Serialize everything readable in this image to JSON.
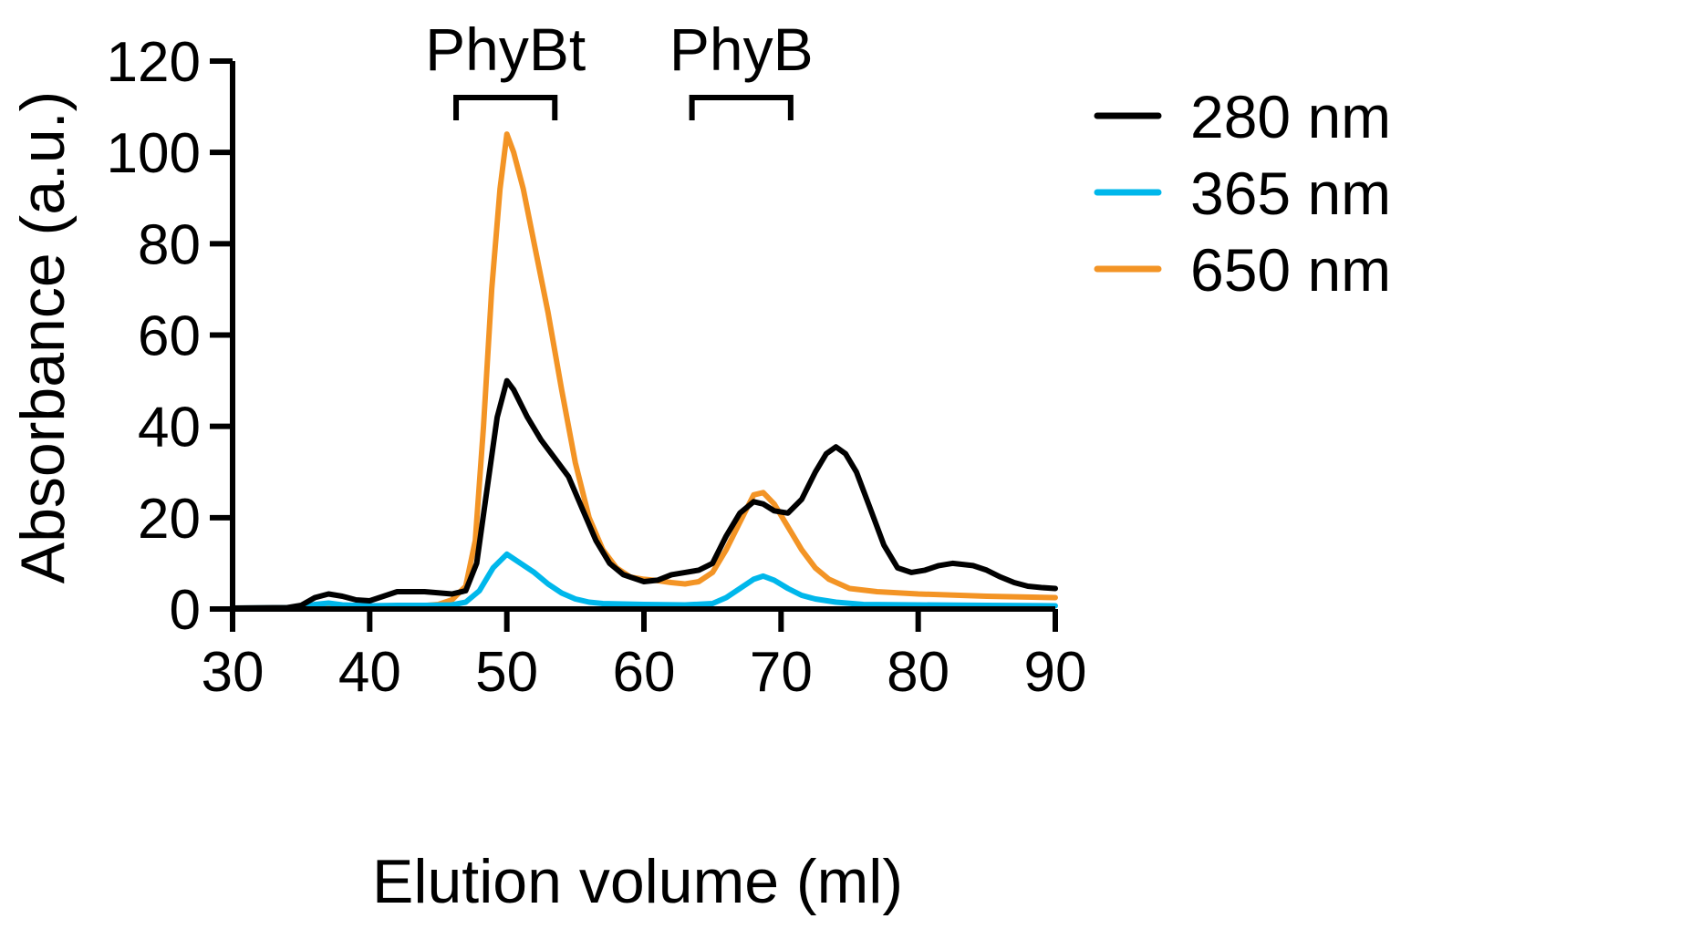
{
  "chart_data": {
    "type": "line",
    "title": "",
    "xlabel": "Elution volume (ml)",
    "ylabel": "Absorbance (a.u.)",
    "xlim": [
      30,
      90
    ],
    "ylim": [
      0,
      120
    ],
    "xticks": [
      30,
      40,
      50,
      60,
      70,
      80,
      90
    ],
    "yticks": [
      0,
      20,
      40,
      60,
      80,
      100,
      120
    ],
    "grid": false,
    "legend_position": "right",
    "series": [
      {
        "name": "280 nm",
        "color": "#000000",
        "points": [
          [
            30,
            0.2
          ],
          [
            34,
            0.3
          ],
          [
            35,
            0.8
          ],
          [
            36,
            2.5
          ],
          [
            37,
            3.3
          ],
          [
            38,
            2.8
          ],
          [
            39,
            2.0
          ],
          [
            40,
            1.8
          ],
          [
            41,
            2.8
          ],
          [
            42,
            3.8
          ],
          [
            44,
            3.8
          ],
          [
            46,
            3.3
          ],
          [
            47,
            4.0
          ],
          [
            47.8,
            10
          ],
          [
            48.5,
            25
          ],
          [
            49.3,
            42
          ],
          [
            50,
            50
          ],
          [
            50.5,
            48
          ],
          [
            51.5,
            42
          ],
          [
            52.5,
            37
          ],
          [
            53.5,
            33
          ],
          [
            54.5,
            29
          ],
          [
            55.5,
            22
          ],
          [
            56.5,
            15
          ],
          [
            57.5,
            10
          ],
          [
            58.5,
            7.5
          ],
          [
            60,
            6.0
          ],
          [
            61,
            6.3
          ],
          [
            62,
            7.5
          ],
          [
            63,
            8.0
          ],
          [
            64,
            8.5
          ],
          [
            65,
            10
          ],
          [
            66,
            16
          ],
          [
            67,
            21
          ],
          [
            68,
            23.5
          ],
          [
            68.7,
            23
          ],
          [
            69.5,
            21.5
          ],
          [
            70.5,
            21
          ],
          [
            71.5,
            24
          ],
          [
            72.5,
            30
          ],
          [
            73.3,
            34
          ],
          [
            74,
            35.5
          ],
          [
            74.7,
            34
          ],
          [
            75.5,
            30
          ],
          [
            76.5,
            22
          ],
          [
            77.5,
            14
          ],
          [
            78.5,
            9
          ],
          [
            79.5,
            8
          ],
          [
            80.5,
            8.5
          ],
          [
            81.5,
            9.5
          ],
          [
            82.5,
            10
          ],
          [
            84,
            9.5
          ],
          [
            85,
            8.5
          ],
          [
            86,
            7
          ],
          [
            87,
            5.8
          ],
          [
            88,
            5
          ],
          [
            89,
            4.7
          ],
          [
            90,
            4.5
          ]
        ]
      },
      {
        "name": "365 nm",
        "color": "#00B7EB",
        "points": [
          [
            30,
            0.2
          ],
          [
            35,
            0.3
          ],
          [
            36,
            1.0
          ],
          [
            37,
            1.3
          ],
          [
            38,
            0.9
          ],
          [
            40,
            0.7
          ],
          [
            42,
            0.8
          ],
          [
            44,
            0.8
          ],
          [
            46,
            0.9
          ],
          [
            47,
            1.5
          ],
          [
            48,
            4
          ],
          [
            49,
            9
          ],
          [
            50,
            12
          ],
          [
            51,
            10
          ],
          [
            52,
            8
          ],
          [
            53,
            5.5
          ],
          [
            54,
            3.5
          ],
          [
            55,
            2.2
          ],
          [
            56,
            1.5
          ],
          [
            57,
            1.2
          ],
          [
            60,
            1.0
          ],
          [
            63,
            0.9
          ],
          [
            65,
            1.2
          ],
          [
            66,
            2.5
          ],
          [
            67,
            4.5
          ],
          [
            68,
            6.5
          ],
          [
            68.7,
            7.2
          ],
          [
            69.5,
            6.3
          ],
          [
            70.5,
            4.5
          ],
          [
            71.5,
            3
          ],
          [
            72.5,
            2.2
          ],
          [
            74,
            1.5
          ],
          [
            76,
            1.0
          ],
          [
            80,
            0.9
          ],
          [
            85,
            0.8
          ],
          [
            90,
            0.7
          ]
        ]
      },
      {
        "name": "650 nm",
        "color": "#F39425",
        "points": [
          [
            30,
            0.2
          ],
          [
            40,
            0.3
          ],
          [
            43,
            0.5
          ],
          [
            45,
            1.0
          ],
          [
            46,
            2.0
          ],
          [
            47,
            5
          ],
          [
            47.7,
            15
          ],
          [
            48.3,
            40
          ],
          [
            48.9,
            70
          ],
          [
            49.5,
            92
          ],
          [
            50,
            104
          ],
          [
            50.5,
            100
          ],
          [
            51.2,
            92
          ],
          [
            52,
            80
          ],
          [
            53,
            65
          ],
          [
            54,
            48
          ],
          [
            55,
            32
          ],
          [
            56,
            20
          ],
          [
            57,
            13
          ],
          [
            58,
            9
          ],
          [
            59,
            7
          ],
          [
            60,
            6.5
          ],
          [
            61,
            6.2
          ],
          [
            62,
            5.8
          ],
          [
            63,
            5.5
          ],
          [
            64,
            6.0
          ],
          [
            65,
            8
          ],
          [
            66,
            13
          ],
          [
            67,
            19
          ],
          [
            68,
            25
          ],
          [
            68.7,
            25.5
          ],
          [
            69.5,
            23
          ],
          [
            70.5,
            18
          ],
          [
            71.5,
            13
          ],
          [
            72.5,
            9
          ],
          [
            73.5,
            6.5
          ],
          [
            75,
            4.5
          ],
          [
            77,
            3.8
          ],
          [
            80,
            3.3
          ],
          [
            85,
            2.8
          ],
          [
            90,
            2.5
          ]
        ]
      }
    ],
    "annotations": [
      {
        "label": "PhyBt",
        "x_start": 46.3,
        "x_end": 53.5
      },
      {
        "label": "PhyB",
        "x_start": 63.5,
        "x_end": 70.7
      }
    ]
  }
}
